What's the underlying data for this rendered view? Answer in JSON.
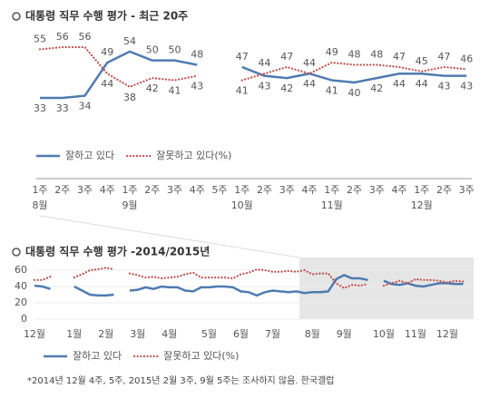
{
  "chart_data": [
    {
      "type": "line",
      "title": "대통령 직무 수행 평가 - 최근 20주",
      "categories": [
        "1주",
        "2주",
        "3주",
        "4주",
        "1주",
        "2주",
        "3주",
        "4주",
        "5주",
        "1주",
        "2주",
        "3주",
        "4주",
        "1주",
        "2주",
        "3주",
        "4주",
        "1주",
        "2주",
        "3주"
      ],
      "month_labels": [
        "8월",
        null,
        null,
        null,
        "9월",
        null,
        null,
        null,
        null,
        "10월",
        null,
        null,
        null,
        "11월",
        null,
        null,
        null,
        "12월",
        null,
        null
      ],
      "series": [
        {
          "name": "잘하고 있다",
          "color": "#4f7bb0",
          "style": "solid",
          "values": [
            33,
            33,
            34,
            49,
            54,
            50,
            50,
            48,
            null,
            47,
            43,
            42,
            44,
            41,
            40,
            42,
            44,
            44,
            43,
            43
          ]
        },
        {
          "name": "잘못하고 있다(%)",
          "color": "#c0504d",
          "style": "dotted",
          "values": [
            55,
            56,
            56,
            44,
            38,
            42,
            41,
            43,
            null,
            41,
            44,
            47,
            44,
            49,
            48,
            48,
            47,
            45,
            47,
            46
          ]
        }
      ],
      "data_labels": true
    },
    {
      "type": "line",
      "title": "대통령 직무 수행 평가 -2014/2015년",
      "categories": [
        "12월",
        null,
        null,
        null,
        null,
        "1월",
        null,
        null,
        null,
        "2월",
        null,
        null,
        null,
        "3월",
        null,
        null,
        null,
        "4월",
        null,
        null,
        null,
        null,
        "5월",
        null,
        null,
        null,
        "6월",
        null,
        null,
        null,
        "7월",
        null,
        null,
        null,
        null,
        "8월",
        null,
        null,
        null,
        "9월",
        null,
        null,
        null,
        null,
        "10월",
        null,
        null,
        null,
        "11월",
        null,
        null,
        null,
        "12월",
        null,
        null
      ],
      "series": [
        {
          "name": "잘하고 있다",
          "color": "#4f7bb0",
          "style": "solid",
          "values": [
            41,
            40,
            37,
            null,
            null,
            40,
            35,
            30,
            29,
            29,
            30,
            null,
            35,
            36,
            39,
            37,
            40,
            39,
            39,
            35,
            34,
            39,
            39,
            40,
            40,
            39,
            34,
            33,
            29,
            33,
            35,
            34,
            33,
            34,
            32,
            33,
            33,
            34,
            49,
            54,
            50,
            50,
            48,
            null,
            47,
            43,
            42,
            44,
            41,
            40,
            42,
            44,
            44,
            43,
            43
          ]
        },
        {
          "name": "잘못하고 있다(%)",
          "color": "#c0504d",
          "style": "dotted",
          "values": [
            48,
            48,
            52,
            null,
            null,
            51,
            55,
            60,
            61,
            63,
            61,
            null,
            56,
            54,
            51,
            52,
            50,
            51,
            52,
            55,
            57,
            51,
            51,
            51,
            51,
            50,
            55,
            57,
            61,
            60,
            58,
            58,
            59,
            58,
            60,
            55,
            56,
            56,
            44,
            38,
            42,
            41,
            43,
            null,
            41,
            44,
            47,
            44,
            49,
            48,
            48,
            47,
            45,
            47,
            46
          ]
        }
      ],
      "ylim": [
        0,
        65
      ],
      "yticks": [
        0,
        20,
        40,
        60
      ],
      "grid": true,
      "note": "*2014년 12월 4주, 5주, 2015년 2월 3주, 9월 5주는 조사하지 않음. 한국갤럽"
    }
  ]
}
